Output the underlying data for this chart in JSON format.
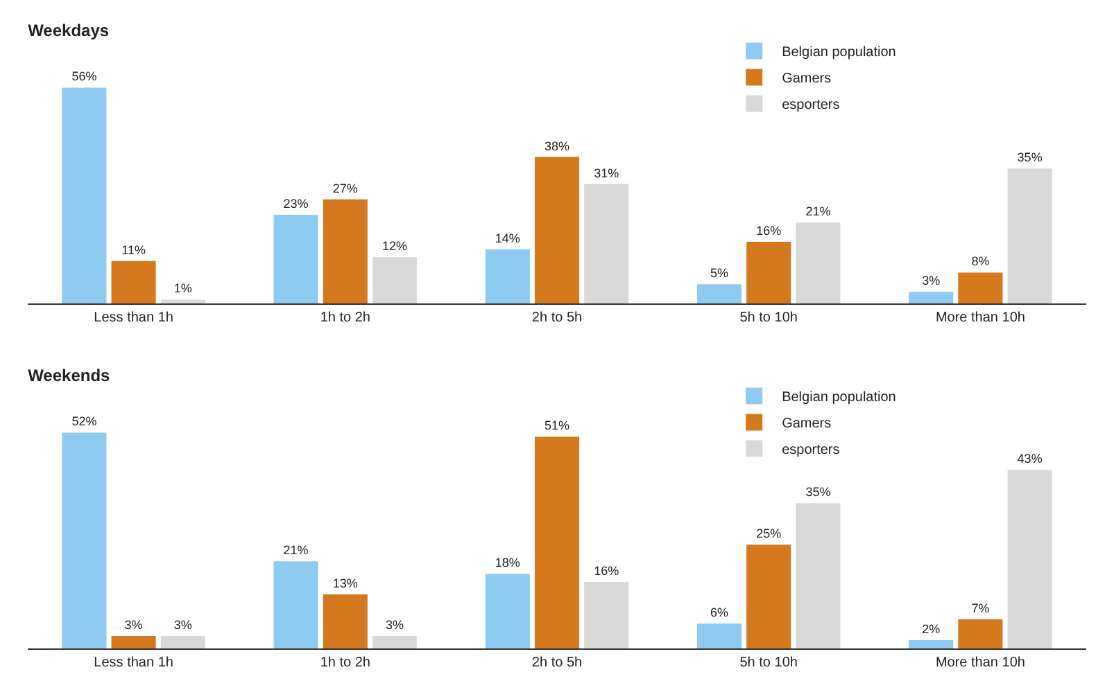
{
  "chart_data": [
    {
      "type": "bar",
      "title": "Weekdays",
      "categories": [
        "Less than 1h",
        "1h to 2h",
        "2h to 5h",
        "5h to 10h",
        "More than 10h"
      ],
      "legend": "top right",
      "grid": false,
      "tick_labels": "x",
      "series": [
        {
          "name": "Belgian population",
          "color": "#8fcbf0",
          "values": [
            56,
            23,
            14,
            5,
            3
          ],
          "value_labels": [
            "56%",
            "23%",
            "14%",
            "5%",
            "3%"
          ]
        },
        {
          "name": "Gamers",
          "color": "#d5791f",
          "values": [
            11,
            27,
            38,
            16,
            8
          ],
          "value_labels": [
            "11%",
            "27%",
            "38%",
            "16%",
            "8%"
          ]
        },
        {
          "name": "esporters",
          "color": "#d9d9d9",
          "values": [
            1,
            12,
            31,
            21,
            35
          ],
          "value_labels": [
            "1%",
            "12%",
            "31%",
            "21%",
            "35%"
          ]
        }
      ]
    },
    {
      "type": "bar",
      "title": "Weekends",
      "categories": [
        "Less than 1h",
        "1h to 2h",
        "2h to 5h",
        "5h to 10h",
        "More than 10h"
      ],
      "legend": "top right",
      "grid": false,
      "tick_labels": "x",
      "series": [
        {
          "name": "Belgian population",
          "color": "#8fcbf0",
          "values": [
            52,
            21,
            18,
            6,
            2
          ],
          "value_labels": [
            "52%",
            "21%",
            "18%",
            "6%",
            "2%"
          ]
        },
        {
          "name": "Gamers",
          "color": "#d5791f",
          "values": [
            3,
            13,
            51,
            25,
            7
          ],
          "value_labels": [
            "3%",
            "13%",
            "51%",
            "25%",
            "7%"
          ]
        },
        {
          "name": "esporters",
          "color": "#d9d9d9",
          "values": [
            3,
            3,
            16,
            35,
            43
          ],
          "value_labels": [
            "3%",
            "3%",
            "16%",
            "35%",
            "43%"
          ]
        }
      ]
    }
  ]
}
